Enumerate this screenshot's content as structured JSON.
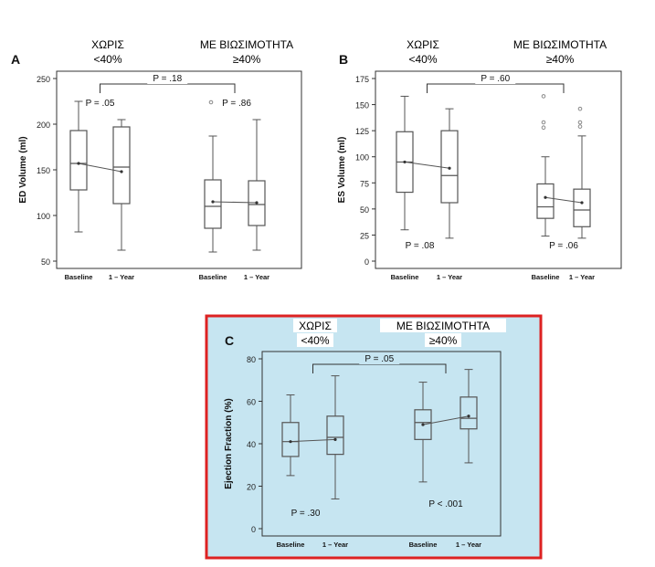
{
  "panels": [
    {
      "id": "A",
      "letter": "A",
      "header_left": [
        "ΧΩΡΙΣ",
        "<40%"
      ],
      "header_right": [
        "ΜΕ ΒΙΩΣΙΜΟΤΗΤΑ",
        "≥40%"
      ],
      "ylabel": "ED Volume (ml)",
      "highlight": false,
      "chart_data": {
        "type": "box",
        "ylim": [
          50,
          250
        ],
        "yticks": [
          50,
          100,
          150,
          200,
          250
        ],
        "categories": [
          "Baseline",
          "1 – Year",
          "Baseline",
          "1 – Year"
        ],
        "groups": [
          "<40%",
          "≥40%"
        ],
        "boxes": [
          {
            "group": "<40%",
            "category": "Baseline",
            "min": 82,
            "q1": 128,
            "median": 157,
            "q3": 193,
            "max": 225,
            "mean": 157,
            "outliers": []
          },
          {
            "group": "<40%",
            "category": "1 – Year",
            "min": 62,
            "q1": 113,
            "median": 153,
            "q3": 197,
            "max": 205,
            "mean": 148,
            "outliers": []
          },
          {
            "group": "≥40%",
            "category": "Baseline",
            "min": 60,
            "q1": 86,
            "median": 110,
            "q3": 139,
            "max": 187,
            "mean": 115,
            "outliers": [
              224
            ]
          },
          {
            "group": "≥40%",
            "category": "1 – Year",
            "min": 62,
            "q1": 89,
            "median": 112,
            "q3": 138,
            "max": 205,
            "mean": 114,
            "outliers": []
          }
        ],
        "annotations": {
          "p_between": "P = .18",
          "p_left": "P = .05",
          "p_right": "P = .86"
        }
      }
    },
    {
      "id": "B",
      "letter": "B",
      "header_left": [
        "ΧΩΡΙΣ",
        "<40%"
      ],
      "header_right": [
        "ΜΕ ΒΙΩΣΙΜΟΤΗΤΑ",
        "≥40%"
      ],
      "ylabel": "ES Volume (ml)",
      "highlight": false,
      "chart_data": {
        "type": "box",
        "ylim": [
          0,
          175
        ],
        "yticks": [
          0,
          25,
          50,
          75,
          100,
          125,
          150,
          175
        ],
        "categories": [
          "Baseline",
          "1 – Year",
          "Baseline",
          "1 – Year"
        ],
        "groups": [
          "<40%",
          "≥40%"
        ],
        "boxes": [
          {
            "group": "<40%",
            "category": "Baseline",
            "min": 30,
            "q1": 66,
            "median": 95,
            "q3": 124,
            "max": 158,
            "mean": 95,
            "outliers": []
          },
          {
            "group": "<40%",
            "category": "1 – Year",
            "min": 22,
            "q1": 56,
            "median": 82,
            "q3": 125,
            "max": 146,
            "mean": 89,
            "outliers": []
          },
          {
            "group": "≥40%",
            "category": "Baseline",
            "min": 24,
            "q1": 41,
            "median": 52,
            "q3": 74,
            "max": 100,
            "mean": 61,
            "outliers": [
              158,
              133,
              128
            ]
          },
          {
            "group": "≥40%",
            "category": "1 – Year",
            "min": 22,
            "q1": 33,
            "median": 49,
            "q3": 69,
            "max": 120,
            "mean": 56,
            "outliers": [
              146,
              133,
              129
            ]
          }
        ],
        "annotations": {
          "p_between": "P = .60",
          "p_left": "P = .08",
          "p_right": "P = .06"
        }
      }
    },
    {
      "id": "C",
      "letter": "C",
      "header_left": [
        "ΧΩΡΙΣ",
        "<40%"
      ],
      "header_right": [
        "ΜΕ ΒΙΩΣΙΜΟΤΗΤΑ",
        "≥40%"
      ],
      "ylabel": "Ejection Fraction (%)",
      "highlight": true,
      "chart_data": {
        "type": "box",
        "ylim": [
          0,
          80
        ],
        "yticks": [
          0,
          20,
          40,
          60,
          80
        ],
        "categories": [
          "Baseline",
          "1 – Year",
          "Baseline",
          "1 – Year"
        ],
        "groups": [
          "<40%",
          "≥40%"
        ],
        "boxes": [
          {
            "group": "<40%",
            "category": "Baseline",
            "min": 25,
            "q1": 34,
            "median": 41,
            "q3": 50,
            "max": 63,
            "mean": 41,
            "outliers": []
          },
          {
            "group": "<40%",
            "category": "1 – Year",
            "min": 14,
            "q1": 35,
            "median": 43,
            "q3": 53,
            "max": 72,
            "mean": 42,
            "outliers": []
          },
          {
            "group": "≥40%",
            "category": "Baseline",
            "min": 22,
            "q1": 42,
            "median": 50,
            "q3": 56,
            "max": 69,
            "mean": 49,
            "outliers": []
          },
          {
            "group": "≥40%",
            "category": "1 – Year",
            "min": 31,
            "q1": 47,
            "median": 52,
            "q3": 62,
            "max": 75,
            "mean": 53,
            "outliers": []
          }
        ],
        "annotations": {
          "p_between": "P = .05",
          "p_left": "P = .30",
          "p_right": "P < .001"
        }
      }
    }
  ],
  "colors": {
    "box_stroke": "#555555",
    "mean_line": "#555555",
    "axis": "#333333",
    "highlight_bg": "#c6e5f1",
    "highlight_border": "#dd2222",
    "outlier": "#888888"
  }
}
